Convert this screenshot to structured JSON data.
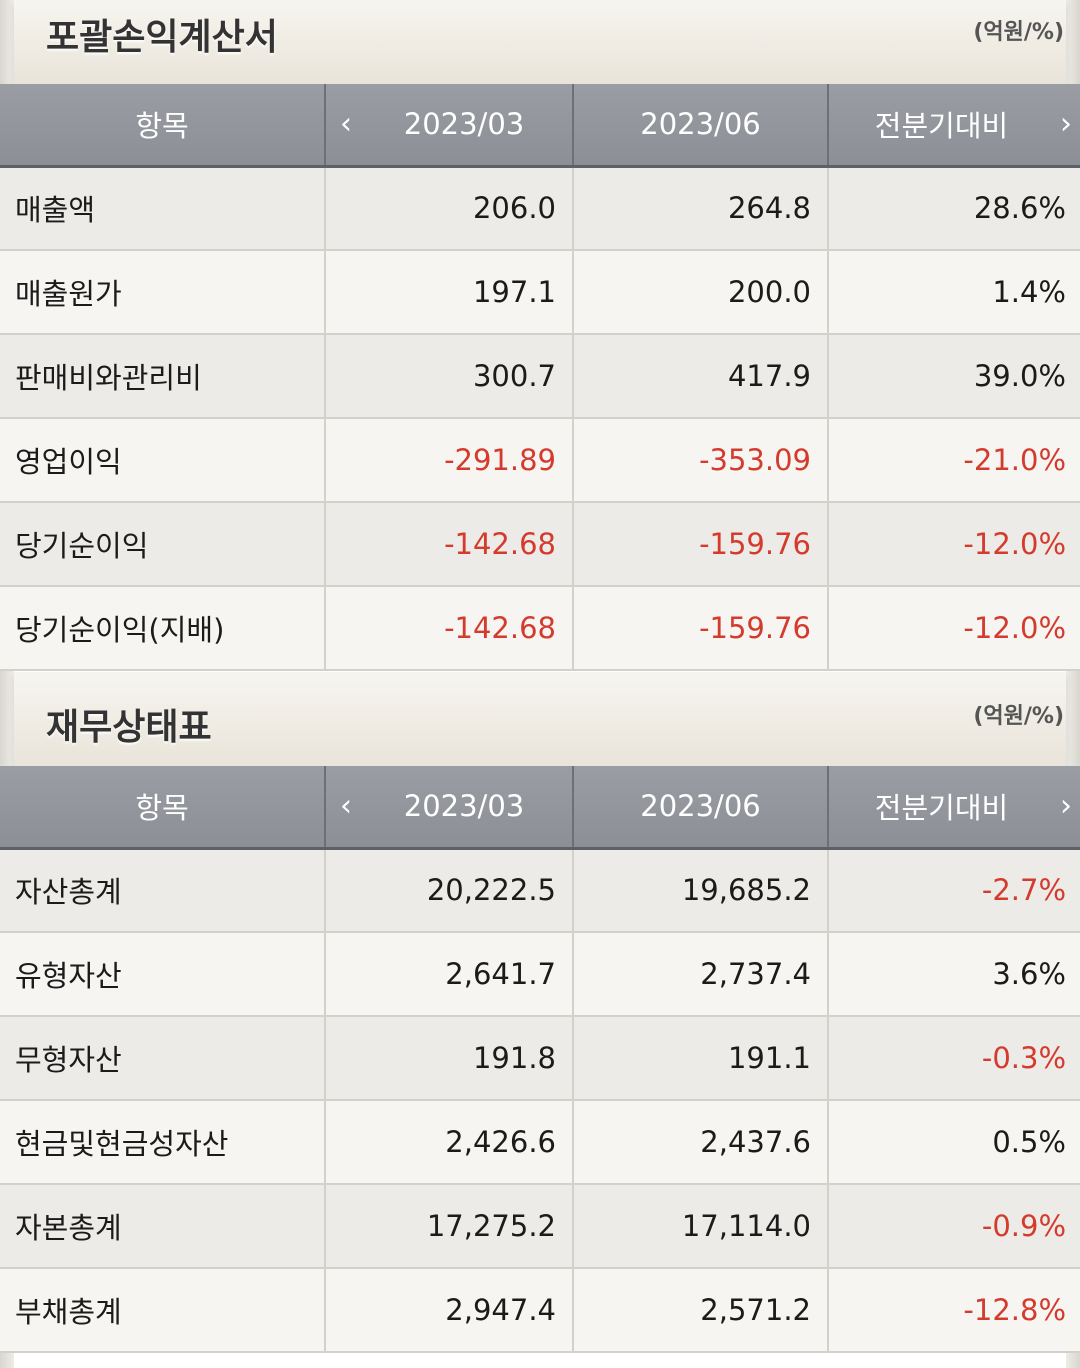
{
  "income": {
    "title": "포괄손익계산서",
    "unit": "(억원/%)",
    "headers": [
      "항목",
      "2023/03",
      "2023/06",
      "전분기대비"
    ],
    "rows": [
      {
        "item": "매출액",
        "q1": "206.0",
        "q2": "264.8",
        "chg": "28.6%"
      },
      {
        "item": "매출원가",
        "q1": "197.1",
        "q2": "200.0",
        "chg": "1.4%"
      },
      {
        "item": "판매비와관리비",
        "q1": "300.7",
        "q2": "417.9",
        "chg": "39.0%"
      },
      {
        "item": "영업이익",
        "q1": "-291.89",
        "q2": "-353.09",
        "chg": "-21.0%"
      },
      {
        "item": "당기순이익",
        "q1": "-142.68",
        "q2": "-159.76",
        "chg": "-12.0%"
      },
      {
        "item": "당기순이익(지배)",
        "q1": "-142.68",
        "q2": "-159.76",
        "chg": "-12.0%"
      }
    ]
  },
  "balance": {
    "title": "재무상태표",
    "unit": "(억원/%)",
    "headers": [
      "항목",
      "2023/03",
      "2023/06",
      "전분기대비"
    ],
    "rows": [
      {
        "item": "자산총계",
        "q1": "20,222.5",
        "q2": "19,685.2",
        "chg": "-2.7%"
      },
      {
        "item": "유형자산",
        "q1": "2,641.7",
        "q2": "2,737.4",
        "chg": "3.6%"
      },
      {
        "item": "무형자산",
        "q1": "191.8",
        "q2": "191.1",
        "chg": "-0.3%"
      },
      {
        "item": "현금및현금성자산",
        "q1": "2,426.6",
        "q2": "2,437.6",
        "chg": "0.5%"
      },
      {
        "item": "자본총계",
        "q1": "17,275.2",
        "q2": "17,114.0",
        "chg": "-0.9%"
      },
      {
        "item": "부채총계",
        "q1": "2,947.4",
        "q2": "2,571.2",
        "chg": "-12.8%"
      }
    ]
  },
  "icons": {
    "prev": "chevron-left-icon",
    "next": "chevron-right-icon"
  },
  "colors": {
    "negative": "#d43b2d",
    "header_bg": "#9a9da3"
  }
}
